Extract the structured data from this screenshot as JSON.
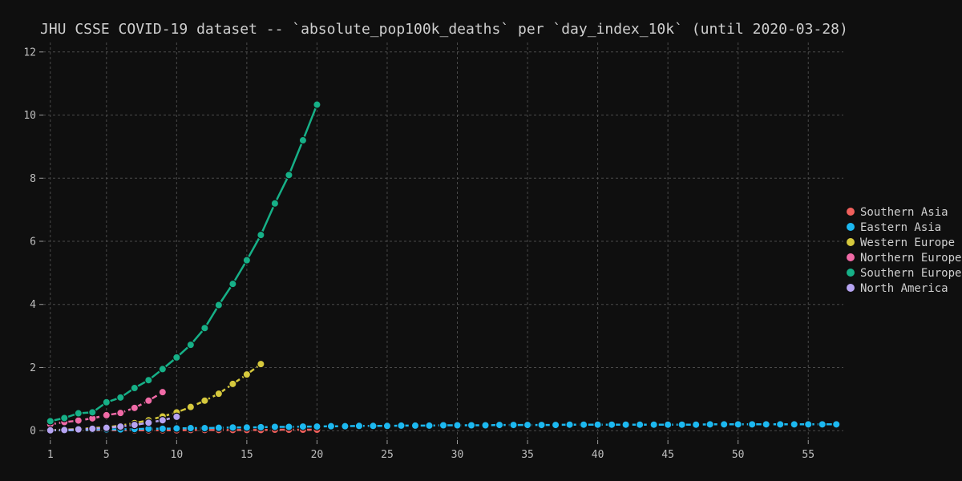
{
  "chart_data": {
    "type": "line",
    "title": "JHU CSSE COVID-19 dataset -- `absolute_pop100k_deaths` per `day_index_10k` (until 2020-03-28)",
    "xlabel": "",
    "ylabel": "",
    "xlim": [
      0.5,
      57.5
    ],
    "ylim": [
      -0.3,
      12.3
    ],
    "x_ticks": [
      1,
      5,
      10,
      15,
      20,
      25,
      30,
      35,
      40,
      45,
      50,
      55
    ],
    "y_ticks": [
      0,
      2,
      4,
      6,
      8,
      10,
      12
    ],
    "grid": true,
    "legend_position": "right",
    "series": [
      {
        "name": "Southern Asia",
        "color": "#f0605c",
        "dashed": true,
        "x": [
          1,
          2,
          3,
          4,
          5,
          6,
          7,
          8,
          9,
          10,
          11,
          12,
          13,
          14,
          15,
          16,
          17,
          18,
          19,
          20
        ],
        "y": [
          0.01,
          0.01,
          0.01,
          0.01,
          0.01,
          0.01,
          0.01,
          0.01,
          0.01,
          0.01,
          0.02,
          0.02,
          0.02,
          0.02,
          0.02,
          0.02,
          0.03,
          0.03,
          0.03,
          0.03
        ]
      },
      {
        "name": "Eastern Asia",
        "color": "#1cb8f0",
        "dashed": true,
        "x": [
          1,
          2,
          3,
          4,
          5,
          6,
          7,
          8,
          9,
          10,
          11,
          12,
          13,
          14,
          15,
          16,
          17,
          18,
          19,
          20,
          21,
          22,
          23,
          24,
          25,
          26,
          27,
          28,
          29,
          30,
          31,
          32,
          33,
          34,
          35,
          36,
          37,
          38,
          39,
          40,
          41,
          42,
          43,
          44,
          45,
          46,
          47,
          48,
          49,
          50,
          51,
          52,
          53,
          54,
          55,
          56,
          57
        ],
        "y": [
          0.01,
          0.01,
          0.02,
          0.03,
          0.04,
          0.04,
          0.05,
          0.06,
          0.06,
          0.07,
          0.08,
          0.08,
          0.09,
          0.1,
          0.1,
          0.11,
          0.12,
          0.12,
          0.13,
          0.13,
          0.14,
          0.14,
          0.15,
          0.15,
          0.15,
          0.16,
          0.16,
          0.16,
          0.17,
          0.17,
          0.17,
          0.17,
          0.18,
          0.18,
          0.18,
          0.18,
          0.18,
          0.19,
          0.19,
          0.19,
          0.19,
          0.19,
          0.19,
          0.19,
          0.19,
          0.19,
          0.19,
          0.2,
          0.2,
          0.2,
          0.2,
          0.2,
          0.2,
          0.2,
          0.2,
          0.2,
          0.2
        ]
      },
      {
        "name": "Western Europe",
        "color": "#d6c93d",
        "dashed": true,
        "x": [
          1,
          2,
          3,
          4,
          5,
          6,
          7,
          8,
          9,
          10,
          11,
          12,
          13,
          14,
          15,
          16
        ],
        "y": [
          0.02,
          0.03,
          0.05,
          0.08,
          0.11,
          0.16,
          0.24,
          0.33,
          0.45,
          0.58,
          0.75,
          0.95,
          1.17,
          1.48,
          1.78,
          2.11
        ]
      },
      {
        "name": "Northern Europe",
        "color": "#f06aa6",
        "dashed": true,
        "x": [
          1,
          2,
          3,
          4,
          5,
          6,
          7,
          8,
          9
        ],
        "y": [
          0.2,
          0.27,
          0.32,
          0.39,
          0.49,
          0.56,
          0.72,
          0.95,
          1.22
        ]
      },
      {
        "name": "Southern Europe",
        "color": "#16b087",
        "dashed": false,
        "x": [
          1,
          2,
          3,
          4,
          5,
          6,
          7,
          8,
          9,
          10,
          11,
          12,
          13,
          14,
          15,
          16,
          17,
          18,
          19,
          20
        ],
        "y": [
          0.3,
          0.4,
          0.55,
          0.58,
          0.9,
          1.05,
          1.35,
          1.6,
          1.95,
          2.32,
          2.72,
          3.25,
          3.98,
          4.65,
          5.4,
          6.2,
          7.2,
          8.1,
          9.2,
          10.33
        ]
      },
      {
        "name": "North America",
        "color": "#b6a4f2",
        "dashed": true,
        "x": [
          1,
          2,
          3,
          4,
          5,
          6,
          7,
          8,
          9,
          10
        ],
        "y": [
          0.01,
          0.02,
          0.04,
          0.06,
          0.09,
          0.13,
          0.18,
          0.25,
          0.33,
          0.44
        ]
      }
    ]
  }
}
